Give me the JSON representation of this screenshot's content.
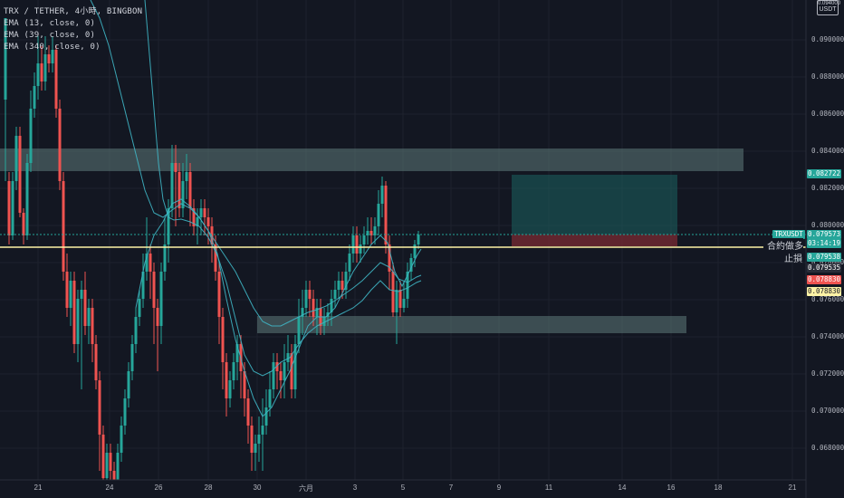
{
  "legend": {
    "symbol": "TRX / TETHER, 4小時, BINGBON",
    "ema1": "EMA (13, close, 0)",
    "ema2": "EMA (39, close, 0)",
    "ema3": "EMA (340, close, 0)"
  },
  "axis": {
    "unit_top": "0.094000",
    "unit": "USDT",
    "price_labels": [
      "0.090000",
      "0.088000",
      "0.086000",
      "0.084000",
      "0.082000",
      "0.080000",
      "0.078000",
      "0.076000",
      "0.074000",
      "0.072000",
      "0.070000",
      "0.068000"
    ],
    "date_labels": [
      "21",
      "24",
      "26",
      "28",
      "30",
      "六月",
      "3",
      "5",
      "7",
      "9",
      "11",
      "14",
      "16",
      "18",
      "21"
    ]
  },
  "tags": {
    "upper_zone_price": "0.082722",
    "ticker": "TRXUSDT",
    "ticker_price": "0.079573",
    "countdown": "03:14:19",
    "price_a": "0.079538",
    "price_b": "0.079535",
    "price_c": "0.078830",
    "price_d": "0.078830"
  },
  "side_labels": {
    "contract_margin": "合約做多",
    "stop_loss": "止損"
  },
  "colors": {
    "background": "#131722",
    "up": "#26a69a",
    "down": "#ef5350",
    "zone": "#5f7a7a",
    "ema": "#3fb6c5",
    "entry_line": "#fff3a6"
  }
}
